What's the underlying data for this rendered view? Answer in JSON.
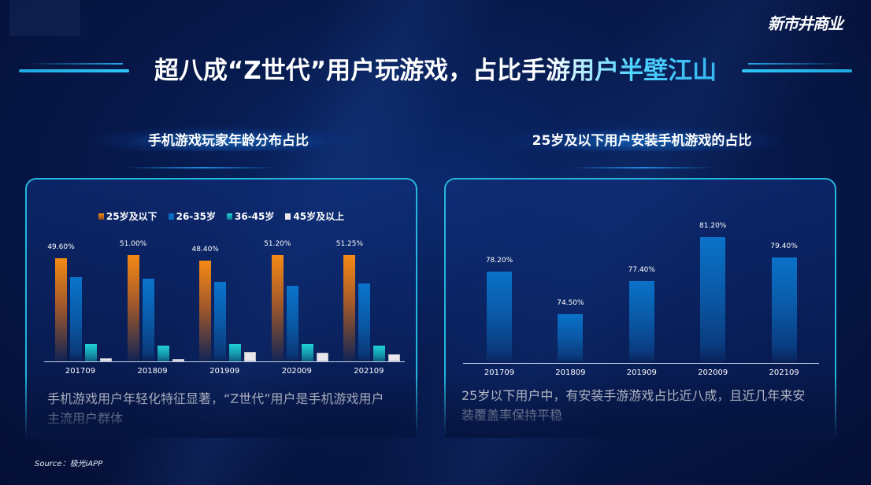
{
  "header": {
    "logo_text": "新市井商业",
    "title": "超八成“Z世代”用户玩游戏，占比手游用户半壁江山"
  },
  "left_panel": {
    "title": "手机游戏玩家年龄分布占比",
    "legend": [
      {
        "label": "25岁及以下",
        "color": "#f0821a"
      },
      {
        "label": "26-35岁",
        "color": "#0a6cc0"
      },
      {
        "label": "36-45岁",
        "color": "#1cc2cc"
      },
      {
        "label": "45岁及以上",
        "color": "#e8e8ec"
      }
    ],
    "description": "手机游戏用户年轻化特征显著，“Z世代”用户是手机游戏用户主流用户群体"
  },
  "right_panel": {
    "title": "25岁及以下用户安装手机游戏的占比",
    "description": "25岁以下用户中，有安装手游游戏占比近八成，且近几年来安装覆盖率保持平稳"
  },
  "source": "Source：极光iAPP",
  "chart_data": [
    {
      "type": "bar",
      "title": "手机游戏玩家年龄分布占比",
      "categories": [
        "201709",
        "201809",
        "201909",
        "202009",
        "202109"
      ],
      "series": [
        {
          "name": "25岁及以下",
          "values": [
            49.6,
            51.0,
            48.4,
            51.2,
            51.25
          ],
          "labels": [
            "49.60%",
            "51.00%",
            "48.40%",
            "51.20%",
            "51.25%"
          ],
          "color": "#f0821a"
        },
        {
          "name": "26-35岁",
          "values": [
            40.5,
            39.7,
            38.3,
            36.4,
            37.5
          ],
          "color": "#0a6cc0"
        },
        {
          "name": "36-45岁",
          "values": [
            8.3,
            7.6,
            8.3,
            8.3,
            7.6
          ],
          "color": "#1cc2cc"
        },
        {
          "name": "45岁及以上",
          "values": [
            1.5,
            1.2,
            4.5,
            4.2,
            3.4
          ],
          "color": "#e8e8ec"
        }
      ],
      "xlabel": "",
      "ylabel": "",
      "ylim": [
        0,
        55
      ],
      "legend_position": "top",
      "grid": false
    },
    {
      "type": "bar",
      "title": "25岁及以下用户安装手机游戏的占比",
      "categories": [
        "201709",
        "201809",
        "201909",
        "202009",
        "202109"
      ],
      "values": [
        78.2,
        74.5,
        77.4,
        81.2,
        79.4
      ],
      "labels": [
        "78.20%",
        "74.50%",
        "77.40%",
        "81.20%",
        "79.40%"
      ],
      "xlabel": "",
      "ylabel": "",
      "ylim": [
        70,
        82
      ],
      "grid": false
    }
  ]
}
